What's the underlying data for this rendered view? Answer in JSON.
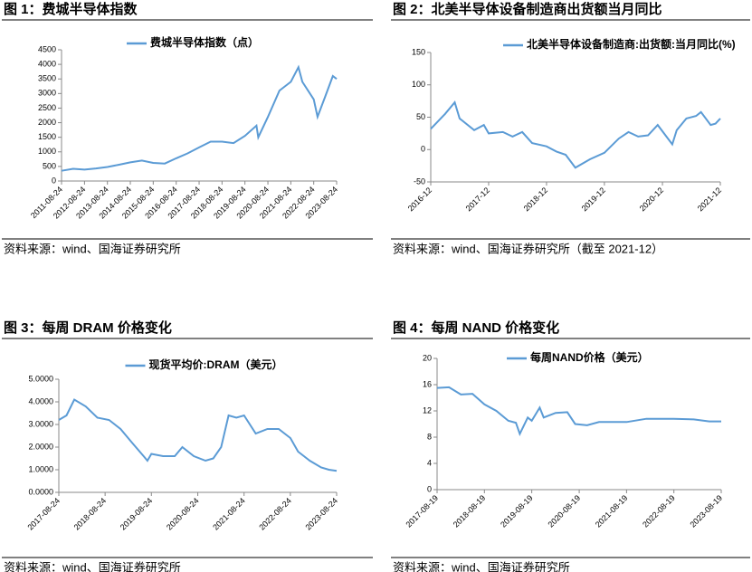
{
  "chart_data": [
    {
      "type": "line",
      "figure_title": "图 1：费城半导体指数",
      "source": "资料来源：wind、国海证券研究所",
      "series": [
        {
          "name": "费城半导体指数（点）",
          "color": "#5b9bd5",
          "values": [
            350,
            420,
            390,
            430,
            480,
            560,
            640,
            700,
            620,
            600,
            780,
            950,
            1150,
            1350,
            1350,
            1300,
            1550,
            1900,
            1500,
            2200,
            3100,
            3400,
            3900,
            3400,
            2800,
            2200,
            2900,
            3600,
            3500
          ]
        }
      ],
      "x": [
        "2011-08-24",
        "2012-02-24",
        "2012-08-24",
        "2013-02-24",
        "2013-08-24",
        "2014-02-24",
        "2014-08-24",
        "2015-02-24",
        "2015-08-24",
        "2016-02-24",
        "2016-08-24",
        "2017-02-24",
        "2017-08-24",
        "2018-02-24",
        "2018-08-24",
        "2019-02-24",
        "2019-08-24",
        "2020-02-24",
        "2020-03-24",
        "2020-08-24",
        "2021-02-24",
        "2021-08-24",
        "2021-12-24",
        "2022-02-24",
        "2022-08-24",
        "2022-10-24",
        "2023-02-24",
        "2023-06-24",
        "2023-08-24"
      ],
      "xlim": [
        "2011-08-24",
        "2023-08-24"
      ],
      "xticks": [
        "2011-08-24",
        "2012-08-24",
        "2013-08-24",
        "2014-08-24",
        "2015-08-24",
        "2016-08-24",
        "2017-08-24",
        "2018-08-24",
        "2019-08-24",
        "2020-08-24",
        "2021-08-24",
        "2022-08-24",
        "2023-08-24"
      ],
      "ylim": [
        0,
        4500
      ],
      "yticks": [
        0,
        500,
        1000,
        1500,
        2000,
        2500,
        3000,
        3500,
        4000,
        4500
      ]
    },
    {
      "type": "line",
      "figure_title": "图 2：北美半导体设备制造商出货额当月同比",
      "source": "资料来源：wind、国海证券研究所（截至 2021-12）",
      "series": [
        {
          "name": "北美半导体设备制造商:出货额:当月同比(%)",
          "color": "#5b9bd5",
          "values": [
            32,
            55,
            73,
            48,
            30,
            38,
            25,
            27,
            20,
            27,
            10,
            5,
            -3,
            -8,
            -28,
            -15,
            -5,
            17,
            27,
            20,
            22,
            38,
            8,
            30,
            48,
            52,
            58,
            38,
            40,
            48
          ]
        }
      ],
      "x": [
        "2016-12",
        "2017-03",
        "2017-05",
        "2017-06",
        "2017-09",
        "2017-11",
        "2017-12",
        "2018-03",
        "2018-05",
        "2018-07",
        "2018-09",
        "2018-12",
        "2019-02",
        "2019-04",
        "2019-06",
        "2019-09",
        "2019-12",
        "2020-03",
        "2020-05",
        "2020-07",
        "2020-09",
        "2020-11",
        "2021-02",
        "2021-03",
        "2021-05",
        "2021-07",
        "2021-08",
        "2021-10",
        "2021-11",
        "2021-12"
      ],
      "xlim": [
        "2016-12",
        "2021-12"
      ],
      "xticks": [
        "2016-12",
        "2017-12",
        "2018-12",
        "2019-12",
        "2020-12",
        "2021-12"
      ],
      "ylim": [
        -50,
        150
      ],
      "yticks": [
        -50,
        0,
        50,
        100,
        150
      ]
    },
    {
      "type": "line",
      "figure_title": "图 3：每周 DRAM 价格变化",
      "source": "资料来源：wind、国海证券研究所",
      "series": [
        {
          "name": "现货平均价:DRAM（美元）",
          "color": "#5b9bd5",
          "values": [
            3.2,
            3.4,
            4.1,
            3.8,
            3.3,
            3.2,
            2.8,
            2.2,
            1.6,
            1.4,
            1.7,
            1.6,
            1.6,
            2.0,
            1.6,
            1.4,
            1.5,
            2.0,
            3.4,
            3.3,
            3.4,
            2.6,
            2.8,
            2.8,
            2.4,
            1.8,
            1.4,
            1.1,
            1.0,
            0.95
          ]
        }
      ],
      "x": [
        "2017-08-24",
        "2017-10-24",
        "2017-12-24",
        "2018-03-24",
        "2018-06-24",
        "2018-09-24",
        "2018-12-24",
        "2019-03-24",
        "2019-06-24",
        "2019-07-24",
        "2019-08-24",
        "2019-11-24",
        "2020-02-24",
        "2020-04-24",
        "2020-07-24",
        "2020-10-24",
        "2020-12-24",
        "2021-02-24",
        "2021-04-24",
        "2021-06-24",
        "2021-08-24",
        "2021-11-24",
        "2022-02-24",
        "2022-05-24",
        "2022-08-24",
        "2022-10-24",
        "2023-01-24",
        "2023-04-24",
        "2023-06-24",
        "2023-08-24"
      ],
      "xlim": [
        "2017-08-24",
        "2023-08-24"
      ],
      "xticks": [
        "2017-08-24",
        "2018-08-24",
        "2019-08-24",
        "2020-08-24",
        "2021-08-24",
        "2022-08-24",
        "2023-08-24"
      ],
      "ylim": [
        0,
        5
      ],
      "yticks": [
        {
          "value": 0,
          "label": "0.0000"
        },
        {
          "value": 1,
          "label": "1.0000"
        },
        {
          "value": 2,
          "label": "2.0000"
        },
        {
          "value": 3,
          "label": "3.0000"
        },
        {
          "value": 4,
          "label": "4.0000"
        },
        {
          "value": 5,
          "label": "5.0000"
        }
      ]
    },
    {
      "type": "line",
      "figure_title": "图 4：每周 NAND 价格变化",
      "source": "资料来源：wind、国海证券研究所",
      "series": [
        {
          "name": "每周NAND价格（美元）",
          "color": "#5b9bd5",
          "values": [
            15.5,
            15.6,
            14.5,
            14.6,
            13,
            12,
            10.5,
            10.2,
            8.5,
            11,
            10.5,
            12.5,
            11,
            11.7,
            11.8,
            10,
            9.8,
            10.3,
            10.3,
            10.8,
            10.8,
            10.7,
            10.4,
            10.4
          ]
        }
      ],
      "x": [
        "2017-08-19",
        "2017-11-19",
        "2018-02-19",
        "2018-05-19",
        "2018-08-19",
        "2018-11-19",
        "2019-02-19",
        "2019-04-19",
        "2019-05-19",
        "2019-07-19",
        "2019-08-19",
        "2019-10-19",
        "2019-11-19",
        "2020-02-19",
        "2020-05-19",
        "2020-07-19",
        "2020-10-19",
        "2021-01-19",
        "2021-08-19",
        "2022-01-19",
        "2022-08-19",
        "2023-01-19",
        "2023-05-19",
        "2023-08-19"
      ],
      "xlim": [
        "2017-08-19",
        "2023-08-19"
      ],
      "xticks": [
        "2017-08-19",
        "2018-08-19",
        "2019-08-19",
        "2020-08-19",
        "2021-08-19",
        "2022-08-19",
        "2023-08-19"
      ],
      "ylim": [
        0,
        20
      ],
      "yticks": [
        0,
        4,
        8,
        12,
        16,
        20
      ]
    }
  ]
}
